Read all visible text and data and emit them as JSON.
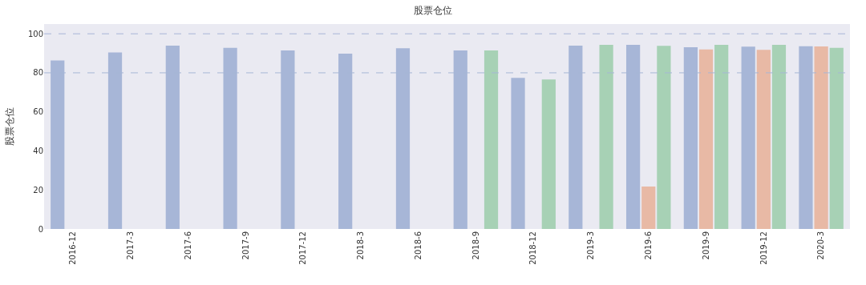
{
  "chart_data": {
    "type": "bar",
    "title": "股票仓位",
    "ylabel": "股票仓位",
    "categories": [
      "2016-12",
      "2017-3",
      "2017-6",
      "2017-9",
      "2017-12",
      "2018-3",
      "2018-6",
      "2018-9",
      "2018-12",
      "2019-3",
      "2019-6",
      "2019-9",
      "2019-12",
      "2020-3"
    ],
    "series": [
      {
        "color": "#a7b6d7",
        "values": [
          86.3,
          90.4,
          93.9,
          92.8,
          91.5,
          89.8,
          92.6,
          91.5,
          77.4,
          93.9,
          94.3,
          93.1,
          93.4,
          93.6
        ]
      },
      {
        "color": "#e8b9a5",
        "values": [
          null,
          null,
          null,
          null,
          null,
          null,
          null,
          null,
          null,
          null,
          21.7,
          92.0,
          91.8,
          93.5
        ]
      },
      {
        "color": "#a7d1b5",
        "values": [
          null,
          null,
          null,
          null,
          null,
          null,
          null,
          91.5,
          76.6,
          94.3,
          93.8,
          94.3,
          94.3,
          92.8
        ]
      }
    ],
    "ylim": [
      0,
      105
    ],
    "yticks": [
      0,
      20,
      40,
      60,
      80,
      100
    ],
    "grid": false,
    "ref_lines": [
      {
        "axis": "y",
        "value": 80,
        "color": "#a7b6d7",
        "line_style": "dashed"
      },
      {
        "axis": "y",
        "value": 100,
        "color": "#a7b6d7",
        "line_style": "dashed"
      }
    ]
  }
}
